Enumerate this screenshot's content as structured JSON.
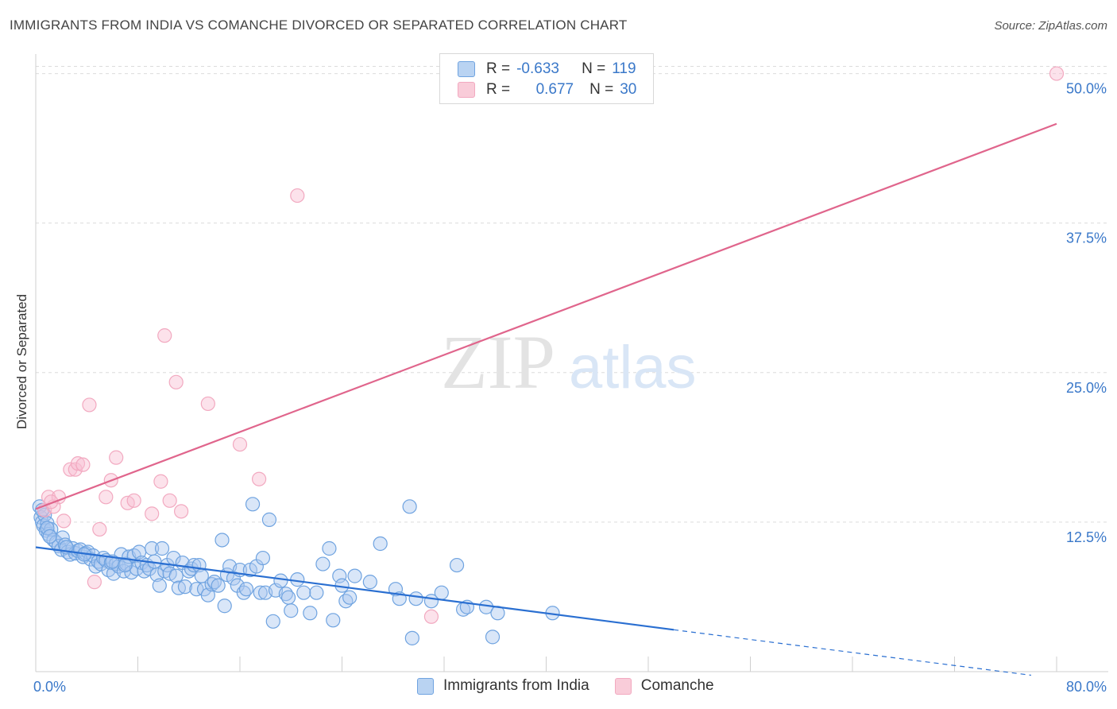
{
  "title": "IMMIGRANTS FROM INDIA VS COMANCHE DIVORCED OR SEPARATED CORRELATION CHART",
  "source": "Source: ZipAtlas.com",
  "watermark": {
    "zip": "ZIP",
    "atlas": "atlas"
  },
  "legend": {
    "series1": {
      "r_label": "R =",
      "r_value": "-0.633",
      "n_label": "N =",
      "n_value": "119"
    },
    "series2": {
      "r_label": "R =",
      "r_value": "0.677",
      "n_label": "N =",
      "n_value": "30"
    }
  },
  "chart_data": {
    "type": "scatter",
    "title": "IMMIGRANTS FROM INDIA VS COMANCHE DIVORCED OR SEPARATED CORRELATION CHART",
    "ylabel": "Divorced or Separated",
    "xlabel": "",
    "xlim": [
      0,
      80
    ],
    "ylim": [
      0,
      51.5
    ],
    "x_tick_labels": [
      "0.0%",
      "80.0%"
    ],
    "y_ticks": [
      12.5,
      25.0,
      37.5,
      50.0
    ],
    "y_tick_labels": [
      "12.5%",
      "25.0%",
      "37.5%",
      "50.0%"
    ],
    "grid": true,
    "legend_position": "top-center",
    "series": [
      {
        "name": "Immigrants from India",
        "color": "#6fa3e0",
        "line_color": "#2a6fd1",
        "r": -0.633,
        "n": 119,
        "trend": {
          "x0": 0,
          "y0": 10.4,
          "x1": 50,
          "y1": 3.5,
          "dash_to_x": 78,
          "dash_to_y": -0.3
        },
        "points": [
          [
            0.3,
            13.8
          ],
          [
            0.4,
            12.9
          ],
          [
            0.5,
            12.5
          ],
          [
            0.6,
            12.2
          ],
          [
            0.7,
            13.1
          ],
          [
            0.8,
            11.8
          ],
          [
            0.9,
            12.4
          ],
          [
            1.0,
            11.5
          ],
          [
            1.2,
            11.9
          ],
          [
            1.4,
            11.0
          ],
          [
            1.6,
            10.8
          ],
          [
            1.8,
            10.5
          ],
          [
            2.0,
            10.2
          ],
          [
            2.1,
            11.2
          ],
          [
            2.3,
            10.6
          ],
          [
            2.5,
            10.0
          ],
          [
            2.7,
            9.8
          ],
          [
            2.9,
            10.3
          ],
          [
            3.1,
            9.9
          ],
          [
            3.3,
            10.1
          ],
          [
            3.5,
            10.2
          ],
          [
            3.7,
            9.6
          ],
          [
            3.9,
            9.9
          ],
          [
            4.1,
            10.0
          ],
          [
            4.3,
            9.4
          ],
          [
            4.5,
            9.7
          ],
          [
            4.7,
            8.8
          ],
          [
            4.9,
            9.2
          ],
          [
            5.1,
            9.0
          ],
          [
            5.3,
            9.5
          ],
          [
            5.5,
            9.3
          ],
          [
            5.7,
            8.5
          ],
          [
            5.9,
            9.1
          ],
          [
            6.1,
            8.2
          ],
          [
            6.3,
            9.0
          ],
          [
            6.5,
            8.8
          ],
          [
            6.7,
            9.8
          ],
          [
            6.9,
            8.4
          ],
          [
            7.1,
            9.0
          ],
          [
            7.3,
            9.6
          ],
          [
            7.5,
            8.3
          ],
          [
            7.7,
            9.7
          ],
          [
            7.9,
            8.6
          ],
          [
            8.1,
            10.0
          ],
          [
            8.3,
            9.1
          ],
          [
            8.5,
            8.4
          ],
          [
            8.7,
            8.9
          ],
          [
            8.9,
            8.6
          ],
          [
            9.1,
            10.3
          ],
          [
            9.3,
            9.2
          ],
          [
            9.5,
            8.1
          ],
          [
            9.7,
            7.2
          ],
          [
            9.9,
            10.3
          ],
          [
            10.1,
            8.4
          ],
          [
            10.3,
            8.9
          ],
          [
            10.5,
            8.2
          ],
          [
            10.8,
            9.5
          ],
          [
            11.0,
            8.0
          ],
          [
            11.2,
            7.0
          ],
          [
            11.5,
            9.1
          ],
          [
            11.7,
            7.1
          ],
          [
            12.0,
            8.4
          ],
          [
            12.2,
            8.6
          ],
          [
            12.4,
            8.9
          ],
          [
            12.6,
            6.9
          ],
          [
            12.8,
            8.9
          ],
          [
            13.0,
            8.0
          ],
          [
            13.2,
            6.9
          ],
          [
            13.5,
            6.4
          ],
          [
            13.8,
            7.3
          ],
          [
            14.0,
            7.5
          ],
          [
            14.3,
            7.2
          ],
          [
            14.6,
            11.0
          ],
          [
            14.8,
            5.5
          ],
          [
            15.0,
            8.1
          ],
          [
            15.2,
            8.8
          ],
          [
            15.5,
            7.8
          ],
          [
            15.8,
            7.2
          ],
          [
            16.0,
            8.5
          ],
          [
            16.3,
            6.6
          ],
          [
            16.5,
            6.9
          ],
          [
            16.8,
            8.5
          ],
          [
            17.0,
            14.0
          ],
          [
            17.3,
            8.8
          ],
          [
            17.6,
            6.6
          ],
          [
            17.8,
            9.5
          ],
          [
            18.0,
            6.6
          ],
          [
            18.3,
            12.7
          ],
          [
            18.6,
            4.2
          ],
          [
            18.8,
            6.8
          ],
          [
            19.2,
            7.6
          ],
          [
            19.6,
            6.5
          ],
          [
            19.8,
            6.2
          ],
          [
            20.0,
            5.1
          ],
          [
            20.5,
            7.7
          ],
          [
            21.0,
            6.6
          ],
          [
            21.5,
            4.9
          ],
          [
            22.0,
            6.6
          ],
          [
            22.5,
            9.0
          ],
          [
            23.0,
            10.3
          ],
          [
            23.3,
            4.3
          ],
          [
            23.8,
            8.0
          ],
          [
            24.0,
            7.2
          ],
          [
            24.3,
            5.9
          ],
          [
            24.6,
            6.2
          ],
          [
            25.0,
            8.0
          ],
          [
            26.2,
            7.5
          ],
          [
            27.0,
            10.7
          ],
          [
            28.2,
            6.9
          ],
          [
            28.5,
            6.1
          ],
          [
            29.3,
            13.8
          ],
          [
            29.5,
            2.8
          ],
          [
            29.8,
            6.1
          ],
          [
            31.0,
            5.9
          ],
          [
            31.8,
            6.6
          ],
          [
            33.0,
            8.9
          ],
          [
            33.5,
            5.2
          ],
          [
            33.8,
            5.4
          ],
          [
            35.3,
            5.4
          ],
          [
            35.8,
            2.9
          ],
          [
            36.2,
            4.9
          ],
          [
            40.5,
            4.9
          ],
          [
            2.4,
            10.4
          ],
          [
            3.8,
            9.8
          ],
          [
            6.0,
            9.2
          ],
          [
            0.9,
            12.0
          ],
          [
            0.5,
            13.5
          ],
          [
            1.1,
            11.3
          ],
          [
            7.0,
            8.9
          ]
        ]
      },
      {
        "name": "Comanche",
        "color": "#f2a9c0",
        "line_color": "#e0658c",
        "r": 0.677,
        "n": 30,
        "trend": {
          "x0": 0,
          "y0": 13.6,
          "x1": 80,
          "y1": 45.8
        },
        "points": [
          [
            0.7,
            13.5
          ],
          [
            1.0,
            14.6
          ],
          [
            1.4,
            13.8
          ],
          [
            1.8,
            14.6
          ],
          [
            2.2,
            12.6
          ],
          [
            2.7,
            16.9
          ],
          [
            3.1,
            16.9
          ],
          [
            3.3,
            17.4
          ],
          [
            3.7,
            17.3
          ],
          [
            4.2,
            22.3
          ],
          [
            4.6,
            7.5
          ],
          [
            5.0,
            11.9
          ],
          [
            5.5,
            14.6
          ],
          [
            5.9,
            16.0
          ],
          [
            6.3,
            17.9
          ],
          [
            7.2,
            14.1
          ],
          [
            7.7,
            14.3
          ],
          [
            9.1,
            13.2
          ],
          [
            9.8,
            15.9
          ],
          [
            10.1,
            28.1
          ],
          [
            10.5,
            14.3
          ],
          [
            11.0,
            24.2
          ],
          [
            11.4,
            13.4
          ],
          [
            13.5,
            22.4
          ],
          [
            16.0,
            19.0
          ],
          [
            17.5,
            16.1
          ],
          [
            20.5,
            39.8
          ],
          [
            31.0,
            4.6
          ],
          [
            80.0,
            50.0
          ],
          [
            1.2,
            14.2
          ]
        ]
      }
    ]
  },
  "bottom_legend": {
    "series1": "Immigrants from India",
    "series2": "Comanche"
  }
}
